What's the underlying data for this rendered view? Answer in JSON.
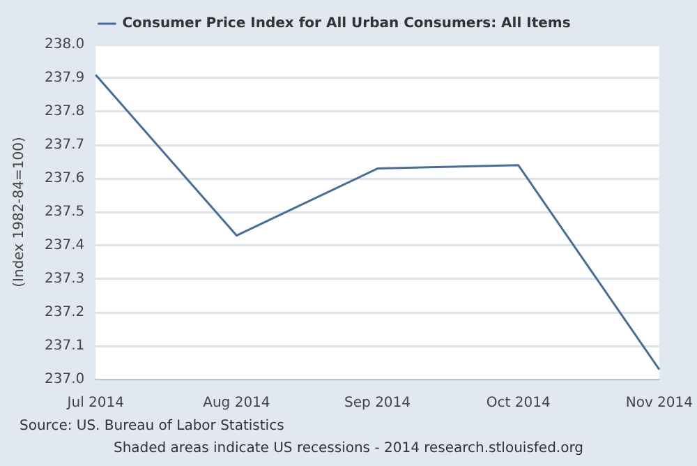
{
  "chart_data": {
    "type": "line",
    "ylabel": "(Index 1982-84=100)",
    "categories": [
      "Jul 2014",
      "Aug 2014",
      "Sep 2014",
      "Oct 2014",
      "Nov 2014"
    ],
    "series": [
      {
        "name": "Consumer Price Index for All Urban Consumers: All Items",
        "color": "#4a6d98",
        "values": [
          237.91,
          237.43,
          237.63,
          237.64,
          237.03
        ]
      }
    ],
    "ylim": [
      237.0,
      238.0
    ],
    "yticks": [
      {
        "value": 237.0,
        "label": "237.0"
      },
      {
        "value": 237.1,
        "label": "237.1"
      },
      {
        "value": 237.2,
        "label": "237.2"
      },
      {
        "value": 237.3,
        "label": "237.3"
      },
      {
        "value": 237.4,
        "label": "237.4"
      },
      {
        "value": 237.5,
        "label": "237.5"
      },
      {
        "value": 237.6,
        "label": "237.6"
      },
      {
        "value": 237.7,
        "label": "237.7"
      },
      {
        "value": 237.8,
        "label": "237.8"
      },
      {
        "value": 237.9,
        "label": "237.9"
      },
      {
        "value": 238.0,
        "label": "238.0"
      }
    ],
    "grid": "y",
    "legend": "top",
    "marker": "none",
    "line_style": "solid",
    "annotations": [
      "Source: US. Bureau of Labor Statistics",
      "Shaded areas indicate US recessions - 2014 research.stlouisfed.org"
    ]
  }
}
